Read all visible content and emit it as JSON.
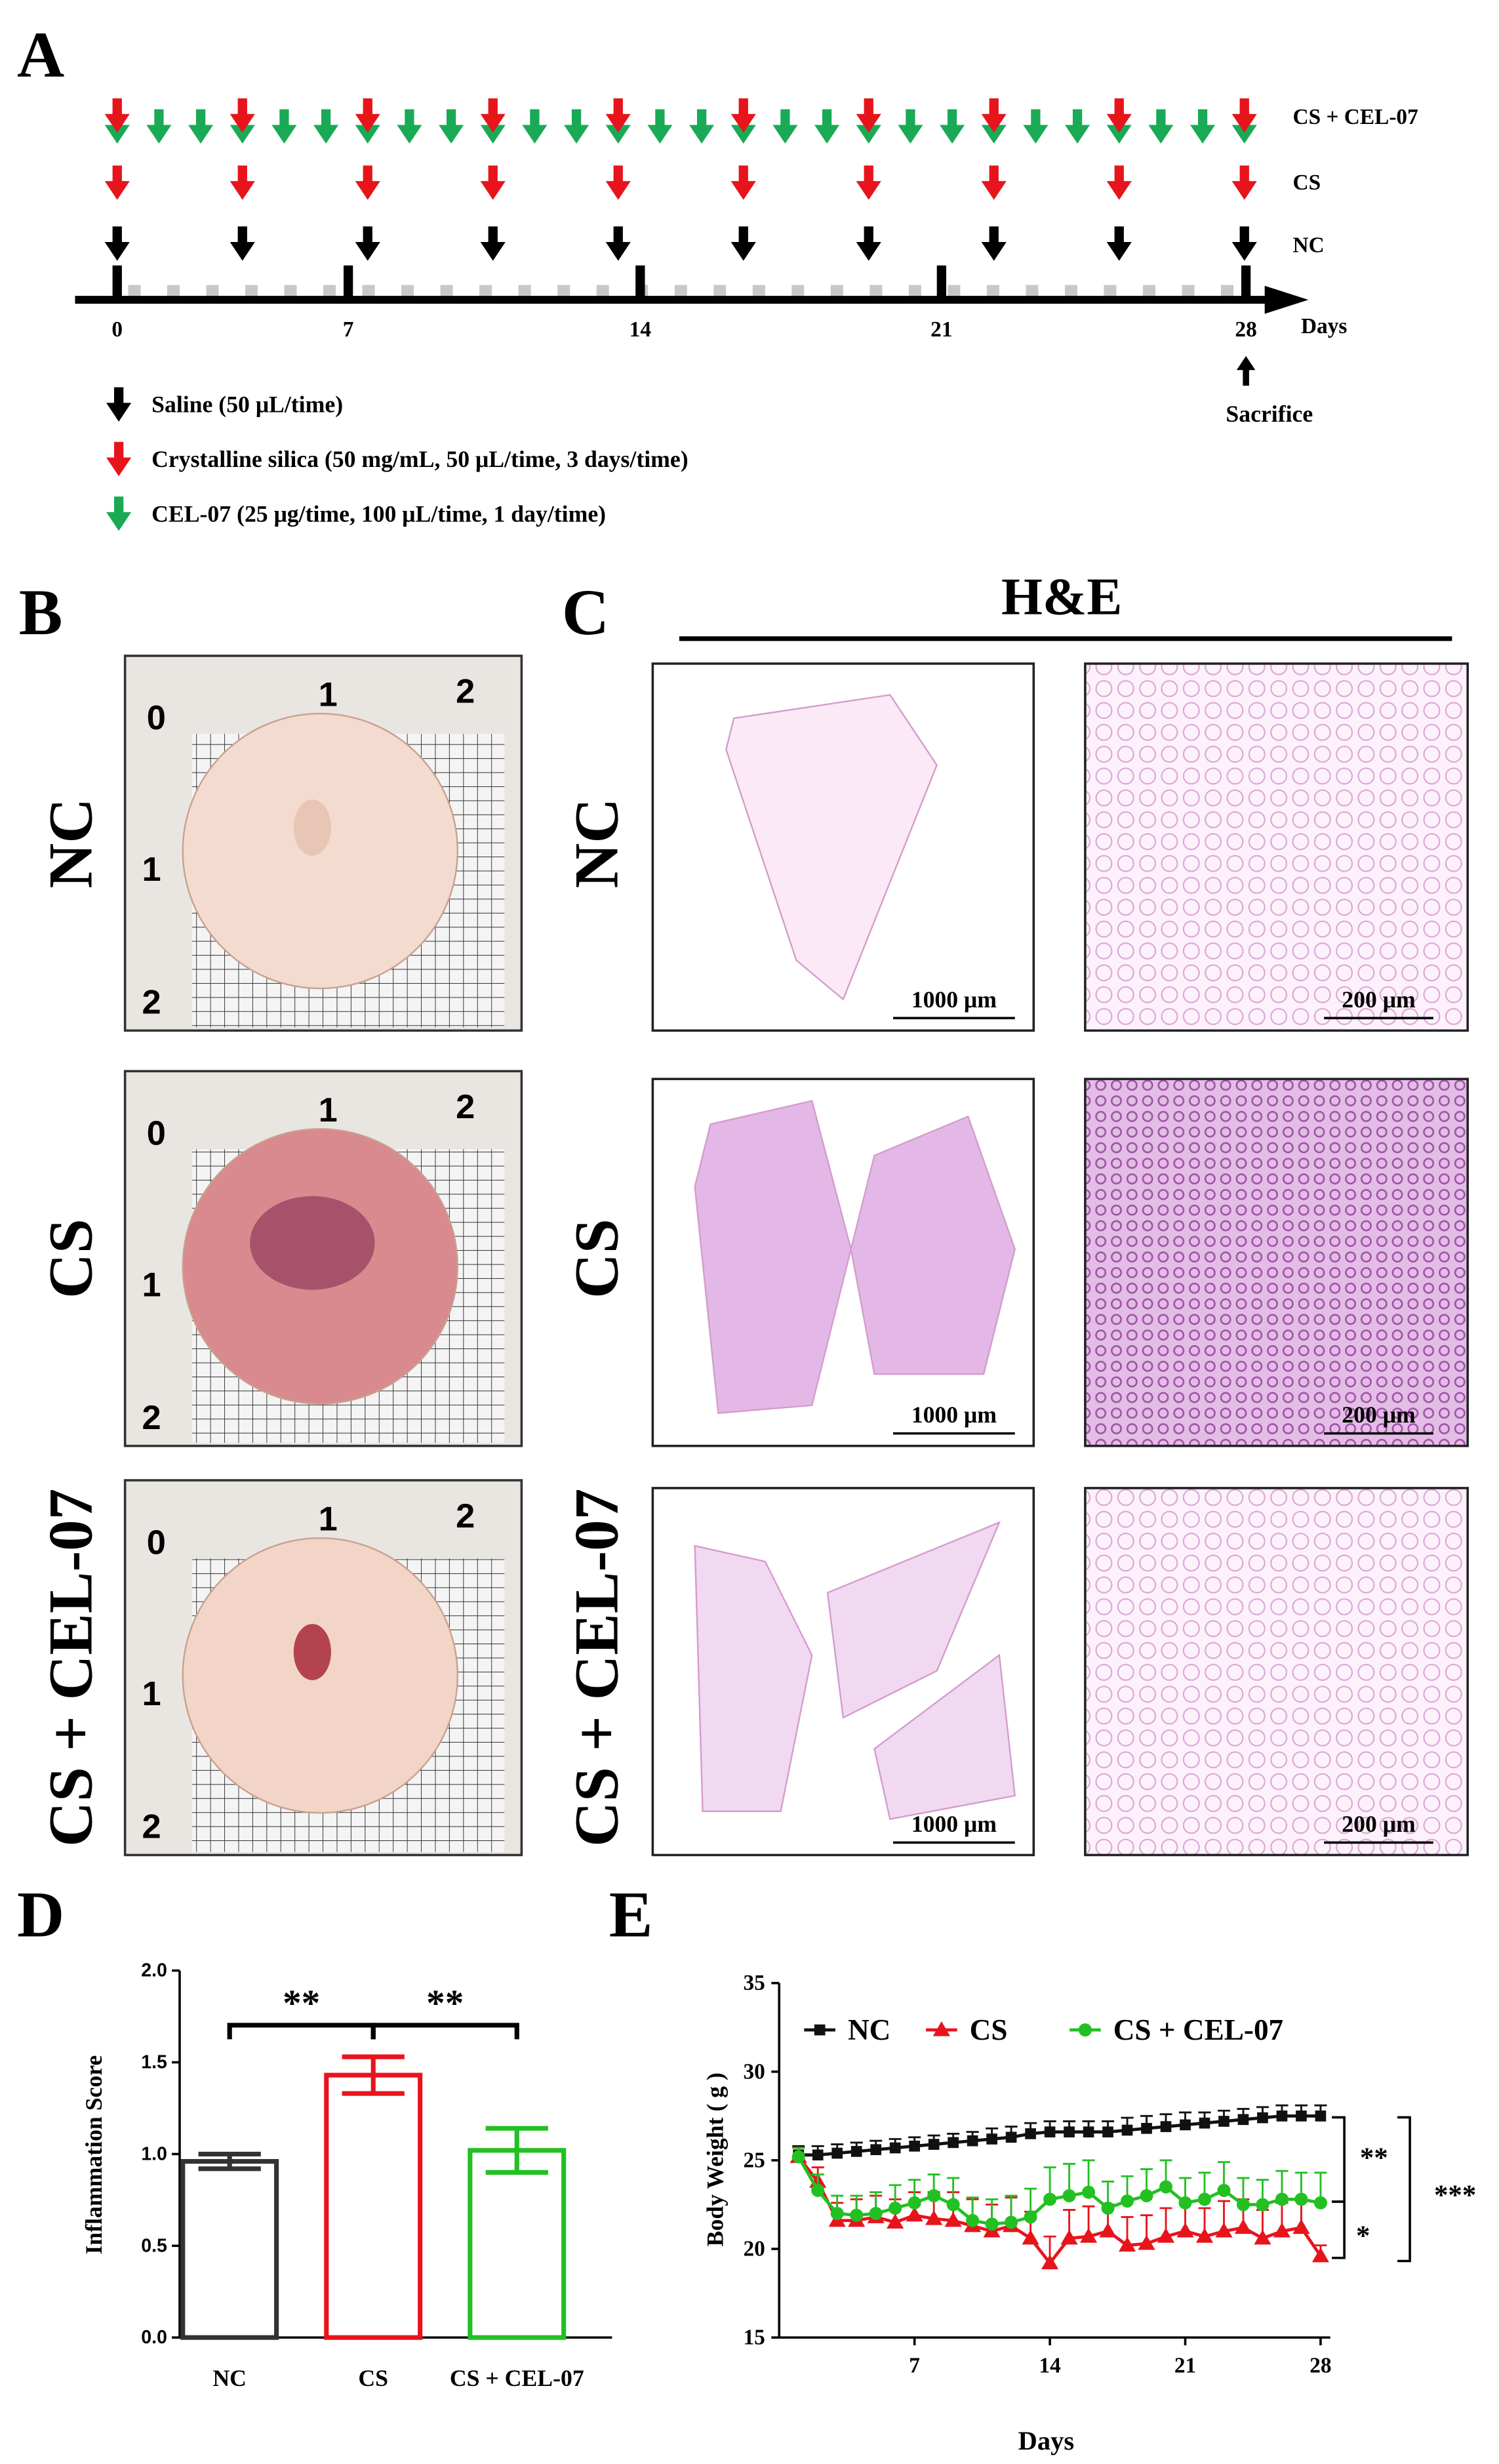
{
  "figure": {
    "panel_labels": [
      "A",
      "B",
      "C",
      "D",
      "E"
    ],
    "groups": [
      "NC",
      "CS",
      "CS + CEL-07"
    ],
    "timeline": {
      "ticks": [
        "0",
        "7",
        "14",
        "21",
        "28"
      ],
      "axis_label": "Days",
      "end_note": "Sacrifice",
      "legend": [
        "Saline (50 μL/time)",
        "Crystalline silica (50 mg/mL, 50 μL/time, 3 days/time)",
        "CEL-07 (25 μg/time, 100 μL/time, 1 day/time)"
      ]
    },
    "photos": {
      "scale_labels": [
        "0",
        "1",
        "2"
      ]
    },
    "histology": {
      "title": "H&E",
      "scale_bars": [
        "1000 μm",
        "200 μm"
      ]
    }
  },
  "chart_data": [
    {
      "type": "bar",
      "y_label": "Inflammation Score",
      "categories": [
        "NC",
        "CS",
        "CS + CEL-07"
      ],
      "values": [
        0.96,
        1.43,
        1.02
      ],
      "errors": [
        0.04,
        0.1,
        0.12
      ],
      "colors": [
        "#333333",
        "#e8141c",
        "#22c022"
      ],
      "ylim": [
        0,
        2
      ],
      "yticks": [
        {
          "value": 0,
          "label": "0.0"
        },
        0.5,
        {
          "value": 1,
          "label": "1.0"
        },
        1.5,
        {
          "value": 2,
          "label": "2.0"
        }
      ],
      "annotations": [
        "**",
        "**"
      ]
    },
    {
      "type": "line",
      "x_label": "Days",
      "y_label": "Body Weight ( g )",
      "x": [
        1,
        2,
        3,
        4,
        5,
        6,
        7,
        8,
        9,
        10,
        11,
        12,
        13,
        14,
        15,
        16,
        17,
        18,
        19,
        20,
        21,
        22,
        23,
        24,
        25,
        26,
        27,
        28
      ],
      "xlim": [
        0,
        28.5
      ],
      "xticks": [
        7,
        14,
        21,
        28
      ],
      "ylim": [
        15,
        35
      ],
      "yticks": [
        15,
        20,
        25,
        30,
        35
      ],
      "legend": "top-left",
      "series": [
        {
          "name": "NC",
          "color": "#111111",
          "marker": "square",
          "values": [
            25.3,
            25.3,
            25.4,
            25.5,
            25.6,
            25.7,
            25.8,
            25.9,
            26.0,
            26.1,
            26.2,
            26.3,
            26.5,
            26.6,
            26.6,
            26.6,
            26.6,
            26.7,
            26.8,
            26.9,
            27.0,
            27.1,
            27.2,
            27.3,
            27.4,
            27.5,
            27.5,
            27.5
          ],
          "errors": [
            0.5,
            0.5,
            0.5,
            0.5,
            0.5,
            0.5,
            0.5,
            0.5,
            0.5,
            0.5,
            0.6,
            0.6,
            0.6,
            0.6,
            0.6,
            0.6,
            0.6,
            0.7,
            0.7,
            0.7,
            0.7,
            0.6,
            0.6,
            0.6,
            0.6,
            0.6,
            0.6,
            0.6
          ]
        },
        {
          "name": "CS",
          "color": "#e8141c",
          "marker": "triangle",
          "values": [
            25.2,
            23.8,
            21.6,
            21.6,
            21.8,
            21.5,
            21.9,
            21.7,
            21.6,
            21.3,
            21.0,
            21.3,
            20.6,
            19.2,
            20.6,
            20.7,
            21.0,
            20.2,
            20.3,
            20.7,
            21.0,
            20.7,
            21.0,
            21.2,
            20.6,
            21.0,
            21.2,
            19.6
          ],
          "errors": [
            0.5,
            0.8,
            1.0,
            1.2,
            1.2,
            1.3,
            1.3,
            1.5,
            1.6,
            1.5,
            1.5,
            1.6,
            1.5,
            1.5,
            1.6,
            1.7,
            1.5,
            1.6,
            1.6,
            1.6,
            1.7,
            1.6,
            1.7,
            1.6,
            1.6,
            1.6,
            1.5,
            0.6
          ]
        },
        {
          "name": "CS + CEL-07",
          "color": "#22c022",
          "marker": "circle",
          "values": [
            25.2,
            23.3,
            22.0,
            21.9,
            22.0,
            22.3,
            22.6,
            23.0,
            22.5,
            21.6,
            21.4,
            21.5,
            21.8,
            22.8,
            23.0,
            23.2,
            22.3,
            22.7,
            23.0,
            23.5,
            22.6,
            22.8,
            23.3,
            22.5,
            22.5,
            22.8,
            22.8,
            22.6
          ],
          "errors": [
            0.5,
            0.9,
            1.0,
            1.1,
            1.2,
            1.3,
            1.3,
            1.2,
            1.5,
            1.3,
            1.4,
            1.5,
            1.6,
            1.8,
            1.8,
            1.8,
            1.5,
            1.4,
            1.5,
            1.5,
            1.4,
            1.5,
            1.6,
            1.5,
            1.4,
            1.6,
            1.5,
            1.7
          ]
        }
      ],
      "annotations": [
        "**",
        "*",
        "***"
      ]
    }
  ]
}
